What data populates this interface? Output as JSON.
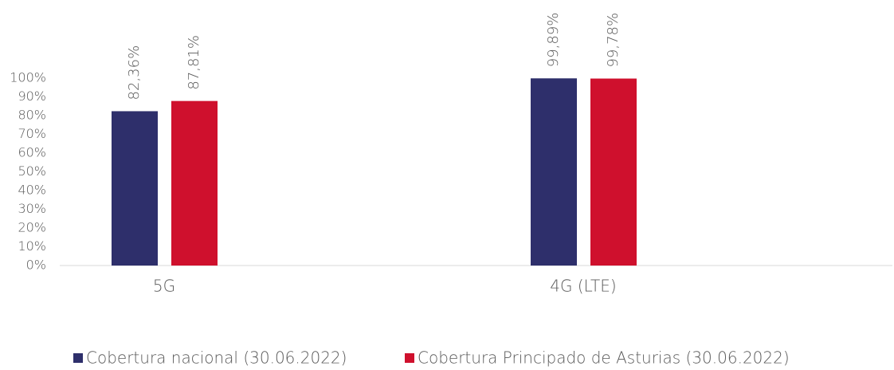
{
  "chart_data": {
    "type": "bar",
    "categories": [
      "5G",
      "4G (LTE)"
    ],
    "series": [
      {
        "name": "Cobertura nacional (30.06.2022)",
        "color": "#2e2f6b",
        "values": [
          82.36,
          99.89
        ],
        "value_labels": [
          "82,36%",
          "99,89%"
        ]
      },
      {
        "name": "Cobertura Principado de Asturias (30.06.2022)",
        "color": "#cf102d",
        "values": [
          87.81,
          99.78
        ],
        "value_labels": [
          "87,81%",
          "99,78%"
        ]
      }
    ],
    "ylim": [
      0,
      100
    ],
    "yticks": [
      {
        "value": 0,
        "label": "0%"
      },
      {
        "value": 10,
        "label": "10%"
      },
      {
        "value": 20,
        "label": "20%"
      },
      {
        "value": 30,
        "label": "30%"
      },
      {
        "value": 40,
        "label": "40%"
      },
      {
        "value": 50,
        "label": "50%"
      },
      {
        "value": 60,
        "label": "60%"
      },
      {
        "value": 70,
        "label": "70%"
      },
      {
        "value": 80,
        "label": "80%"
      },
      {
        "value": 90,
        "label": "90%"
      },
      {
        "value": 100,
        "label": "100%"
      }
    ],
    "legend": "bottom"
  }
}
